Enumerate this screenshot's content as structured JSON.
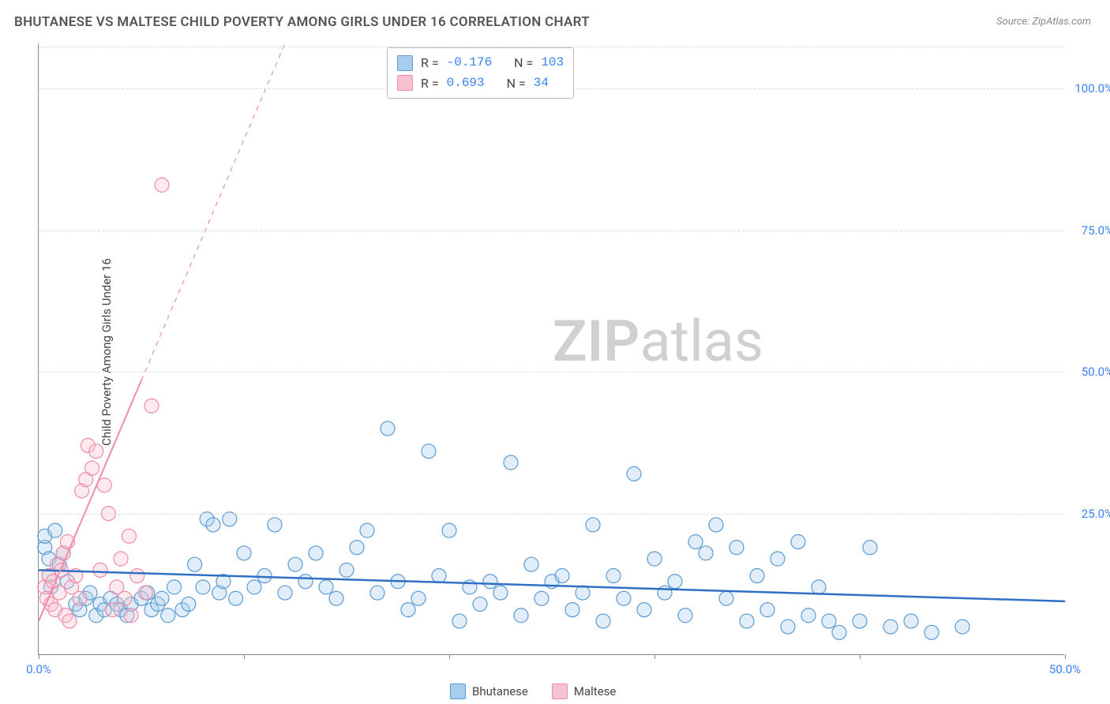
{
  "title": "BHUTANESE VS MALTESE CHILD POVERTY AMONG GIRLS UNDER 16 CORRELATION CHART",
  "source": "Source: ZipAtlas.com",
  "ylabel": "Child Poverty Among Girls Under 16",
  "watermark": {
    "part1": "ZIP",
    "part2": "atlas"
  },
  "chart": {
    "type": "scatter",
    "xlim": [
      0,
      50
    ],
    "ylim": [
      0,
      108
    ],
    "x_ticks": [
      0,
      10,
      20,
      30,
      40,
      50
    ],
    "x_tick_labels_shown": {
      "0": "0.0%",
      "50": "50.0%"
    },
    "y_ticks": [
      25,
      50,
      75,
      100
    ],
    "y_tick_labels": {
      "25": "25.0%",
      "50": "50.0%",
      "75": "75.0%",
      "100": "100.0%"
    },
    "gridline_color": "#e0e0e0",
    "axis_color": "#888888",
    "background_color": "#ffffff",
    "tick_label_color": "#3b82f6",
    "tick_label_fontsize": 15,
    "marker_radius": 9,
    "marker_stroke_width": 1.2,
    "marker_fill_opacity": 0.35
  },
  "series": {
    "bhutanese": {
      "label": "Bhutanese",
      "color_stroke": "#5b9bd5",
      "color_fill": "#a9cdef",
      "trend": {
        "y_at_x0": 15.0,
        "y_at_x50": 9.5,
        "style": "solid",
        "width": 2.5
      },
      "stats": {
        "R": "-0.176",
        "N": "103"
      },
      "points": [
        [
          0.3,
          19
        ],
        [
          0.3,
          21
        ],
        [
          0.5,
          14
        ],
        [
          0.5,
          17
        ],
        [
          0.6,
          12
        ],
        [
          0.8,
          22
        ],
        [
          1.0,
          16
        ],
        [
          1.2,
          18
        ],
        [
          1.4,
          13
        ],
        [
          1.8,
          9
        ],
        [
          2.0,
          8
        ],
        [
          2.3,
          10
        ],
        [
          2.5,
          11
        ],
        [
          2.8,
          7
        ],
        [
          3.0,
          9
        ],
        [
          3.2,
          8
        ],
        [
          3.5,
          10
        ],
        [
          3.8,
          9
        ],
        [
          4.0,
          8
        ],
        [
          4.3,
          7
        ],
        [
          4.5,
          9
        ],
        [
          5.0,
          10
        ],
        [
          5.3,
          11
        ],
        [
          5.5,
          8
        ],
        [
          5.8,
          9
        ],
        [
          6.0,
          10
        ],
        [
          6.3,
          7
        ],
        [
          6.6,
          12
        ],
        [
          7.0,
          8
        ],
        [
          7.3,
          9
        ],
        [
          7.6,
          16
        ],
        [
          8.0,
          12
        ],
        [
          8.2,
          24
        ],
        [
          8.5,
          23
        ],
        [
          8.8,
          11
        ],
        [
          9.0,
          13
        ],
        [
          9.3,
          24
        ],
        [
          9.6,
          10
        ],
        [
          10.0,
          18
        ],
        [
          10.5,
          12
        ],
        [
          11.0,
          14
        ],
        [
          11.5,
          23
        ],
        [
          12.0,
          11
        ],
        [
          12.5,
          16
        ],
        [
          13.0,
          13
        ],
        [
          13.5,
          18
        ],
        [
          14.0,
          12
        ],
        [
          14.5,
          10
        ],
        [
          15.0,
          15
        ],
        [
          15.5,
          19
        ],
        [
          16.0,
          22
        ],
        [
          16.5,
          11
        ],
        [
          17.0,
          40
        ],
        [
          17.5,
          13
        ],
        [
          18.0,
          8
        ],
        [
          18.5,
          10
        ],
        [
          19.0,
          36
        ],
        [
          19.5,
          14
        ],
        [
          20.0,
          22
        ],
        [
          20.5,
          6
        ],
        [
          21.0,
          12
        ],
        [
          21.5,
          9
        ],
        [
          22.0,
          13
        ],
        [
          22.5,
          11
        ],
        [
          23.0,
          34
        ],
        [
          23.5,
          7
        ],
        [
          24.0,
          16
        ],
        [
          24.5,
          10
        ],
        [
          25.0,
          13
        ],
        [
          25.5,
          14
        ],
        [
          26.0,
          8
        ],
        [
          26.5,
          11
        ],
        [
          27.0,
          23
        ],
        [
          27.5,
          6
        ],
        [
          28.0,
          14
        ],
        [
          28.5,
          10
        ],
        [
          29.0,
          32
        ],
        [
          29.5,
          8
        ],
        [
          30.0,
          17
        ],
        [
          30.5,
          11
        ],
        [
          31.0,
          13
        ],
        [
          31.5,
          7
        ],
        [
          32.0,
          20
        ],
        [
          32.5,
          18
        ],
        [
          33.0,
          23
        ],
        [
          33.5,
          10
        ],
        [
          34.0,
          19
        ],
        [
          34.5,
          6
        ],
        [
          35.0,
          14
        ],
        [
          35.5,
          8
        ],
        [
          36.0,
          17
        ],
        [
          36.5,
          5
        ],
        [
          37.0,
          20
        ],
        [
          37.5,
          7
        ],
        [
          38.0,
          12
        ],
        [
          38.5,
          6
        ],
        [
          39.0,
          4
        ],
        [
          40.0,
          6
        ],
        [
          40.5,
          19
        ],
        [
          41.5,
          5
        ],
        [
          42.5,
          6
        ],
        [
          43.5,
          4
        ],
        [
          45.0,
          5
        ]
      ]
    },
    "maltese": {
      "label": "Maltese",
      "color_stroke": "#f08ca8",
      "color_fill": "#f7c2d0",
      "trend": {
        "y_at_x0": 6.0,
        "slope": 8.5,
        "style": "solid_then_dashed",
        "width": 2,
        "dash_after_x": 5.0
      },
      "stats": {
        "R": "0.693",
        "N": "34"
      },
      "points": [
        [
          0.3,
          12
        ],
        [
          0.4,
          10
        ],
        [
          0.5,
          14
        ],
        [
          0.6,
          9
        ],
        [
          0.7,
          13
        ],
        [
          0.8,
          8
        ],
        [
          0.9,
          16
        ],
        [
          1.0,
          11
        ],
        [
          1.1,
          15
        ],
        [
          1.2,
          18
        ],
        [
          1.3,
          7
        ],
        [
          1.4,
          20
        ],
        [
          1.5,
          6
        ],
        [
          1.6,
          12
        ],
        [
          1.8,
          14
        ],
        [
          2.0,
          10
        ],
        [
          2.1,
          29
        ],
        [
          2.3,
          31
        ],
        [
          2.4,
          37
        ],
        [
          2.6,
          33
        ],
        [
          2.8,
          36
        ],
        [
          3.0,
          15
        ],
        [
          3.2,
          30
        ],
        [
          3.4,
          25
        ],
        [
          3.6,
          8
        ],
        [
          3.8,
          12
        ],
        [
          4.0,
          17
        ],
        [
          4.2,
          10
        ],
        [
          4.4,
          21
        ],
        [
          4.8,
          14
        ],
        [
          5.2,
          11
        ],
        [
          5.5,
          44
        ],
        [
          6.0,
          83
        ],
        [
          4.5,
          7
        ]
      ]
    }
  },
  "stats_box": {
    "rows": [
      {
        "swatch_fill": "#a9cdef",
        "swatch_stroke": "#5b9bd5",
        "R": "-0.176",
        "N": "103"
      },
      {
        "swatch_fill": "#f7c2d0",
        "swatch_stroke": "#f08ca8",
        "R": "0.693",
        "N": "34"
      }
    ]
  },
  "legend": [
    {
      "swatch_fill": "#a9cdef",
      "swatch_stroke": "#5b9bd5",
      "label": "Bhutanese"
    },
    {
      "swatch_fill": "#f7c2d0",
      "swatch_stroke": "#f08ca8",
      "label": "Maltese"
    }
  ]
}
